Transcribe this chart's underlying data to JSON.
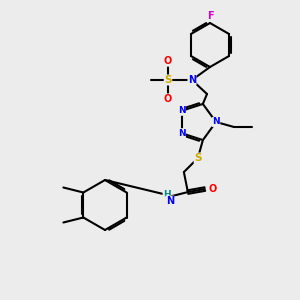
{
  "background_color": "#ececec",
  "atom_colors": {
    "N": "#0000ff",
    "O": "#ff0000",
    "S": "#ccaa00",
    "F": "#cc00cc",
    "H": "#008888",
    "C": "#000000"
  },
  "figsize": [
    3.0,
    3.0
  ],
  "dpi": 100
}
